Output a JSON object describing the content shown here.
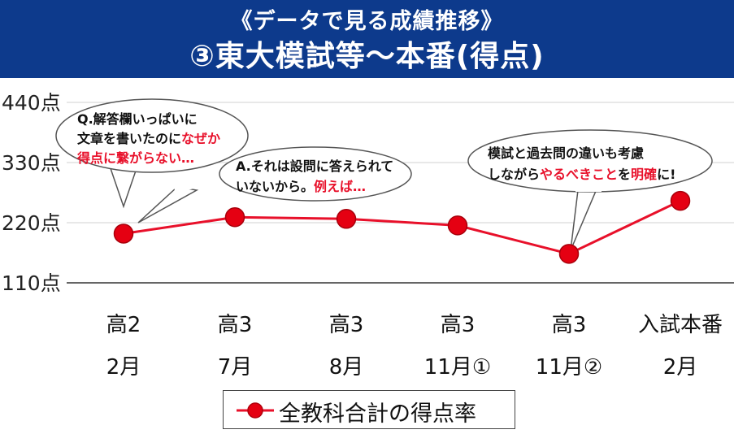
{
  "header": {
    "subtitle": "《データで見る成績推移》",
    "title": "③東大模試等〜本番(得点)"
  },
  "chart_data": {
    "type": "line",
    "categories": [
      {
        "line1": "高2",
        "line2": "2月"
      },
      {
        "line1": "高3",
        "line2": "7月"
      },
      {
        "line1": "高3",
        "line2": "8月"
      },
      {
        "line1": "高3",
        "line2": "11月①"
      },
      {
        "line1": "高3",
        "line2": "11月②"
      },
      {
        "line1": "入試本番",
        "line2": "2月"
      }
    ],
    "series": [
      {
        "name": "全教科合計の得点率",
        "values": [
          200,
          230,
          227,
          215,
          163,
          260
        ]
      }
    ],
    "y_ticks": [
      "440点",
      "330点",
      "220点",
      "110点"
    ],
    "ylim": [
      110,
      440
    ],
    "color": "#e8102a",
    "marker_color": "#e50012",
    "legend_position": "bottom"
  },
  "annotations": {
    "bubble1": {
      "line1": "Q.解答欄いっぱいに",
      "line2_a": "文章を書いたのに",
      "line2_b": "なぜか",
      "line3": "得点に繋がらない…"
    },
    "bubble2": {
      "line1": "A.それは設問に答えられて",
      "line2_a": "いないから。",
      "line2_b": "例えば…"
    },
    "bubble3": {
      "line1": "模試と過去問の違いも考慮",
      "line2_a": "しながら",
      "line2_b": "やるべきこと",
      "line2_c": "を",
      "line2_d": "明確",
      "line2_e": "に!"
    }
  }
}
